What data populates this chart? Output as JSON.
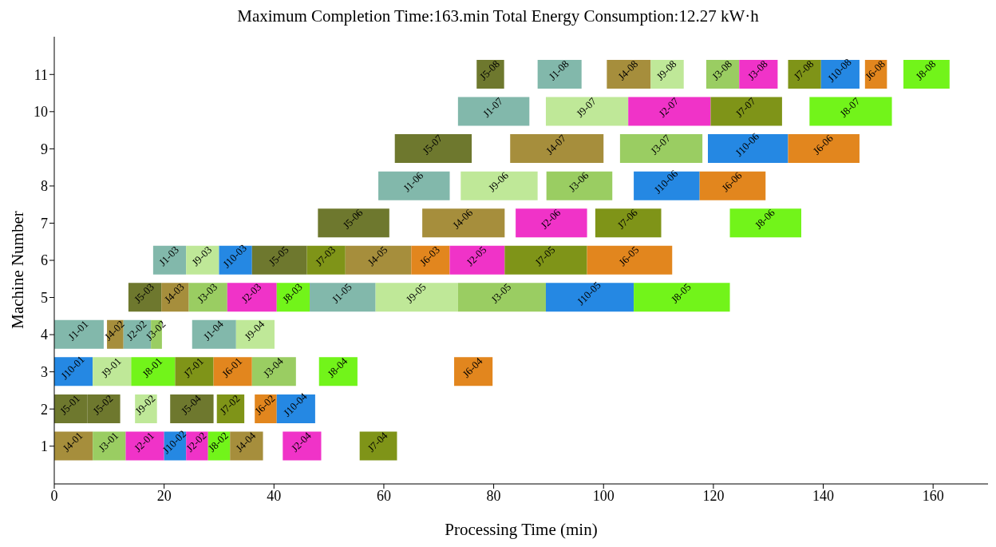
{
  "chart_data": {
    "type": "bar",
    "orientation": "horizontal",
    "title": "Maximum Completion Time:163.min  Total Energy Consumption:12.27 kW·h",
    "xlabel": "Processing Time (min)",
    "ylabel": "Machine Number",
    "categories": [
      "11",
      "10",
      "9",
      "8",
      "7",
      "6",
      "5",
      "4",
      "3",
      "2",
      "1"
    ],
    "xlim": [
      0,
      170
    ],
    "xticks": [
      0,
      20,
      40,
      60,
      80,
      100,
      120,
      140,
      160
    ],
    "grid": false,
    "legend": false,
    "series": [
      {
        "name": "J4-01",
        "color": "#a68e3c",
        "values": [
          null,
          null,
          null,
          null,
          null,
          null,
          null,
          null,
          null,
          null,
          7
        ],
        "base": [
          null,
          null,
          null,
          null,
          null,
          null,
          null,
          null,
          null,
          null,
          0
        ]
      },
      {
        "name": "J3-01",
        "color": "#9acd62",
        "values": [
          null,
          null,
          null,
          null,
          null,
          null,
          null,
          null,
          null,
          null,
          6
        ],
        "base": [
          null,
          null,
          null,
          null,
          null,
          null,
          null,
          null,
          null,
          null,
          7
        ]
      },
      {
        "name": "J2-01",
        "color": "#f033c8",
        "values": [
          null,
          null,
          null,
          null,
          null,
          null,
          null,
          null,
          null,
          null,
          7
        ],
        "base": [
          null,
          null,
          null,
          null,
          null,
          null,
          null,
          null,
          null,
          null,
          13
        ]
      },
      {
        "name": "J10-02",
        "color": "#2588e3",
        "values": [
          null,
          null,
          null,
          null,
          null,
          null,
          null,
          null,
          null,
          null,
          4
        ],
        "base": [
          null,
          null,
          null,
          null,
          null,
          null,
          null,
          null,
          null,
          null,
          20
        ]
      },
      {
        "name": "J2-02",
        "color": "#f033c8",
        "values": [
          null,
          null,
          null,
          null,
          null,
          null,
          null,
          null,
          null,
          null,
          4
        ],
        "base": [
          null,
          null,
          null,
          null,
          null,
          null,
          null,
          null,
          null,
          null,
          24
        ]
      },
      {
        "name": "J8-02",
        "color": "#72f41a",
        "values": [
          null,
          null,
          null,
          null,
          null,
          null,
          null,
          null,
          null,
          null,
          4
        ],
        "base": [
          null,
          null,
          null,
          null,
          null,
          null,
          null,
          null,
          null,
          null,
          28
        ]
      },
      {
        "name": "J4-04",
        "color": "#a68e3c",
        "values": [
          null,
          null,
          null,
          null,
          null,
          null,
          null,
          null,
          null,
          null,
          6
        ],
        "base": [
          null,
          null,
          null,
          null,
          null,
          null,
          null,
          null,
          null,
          null,
          32
        ]
      },
      {
        "name": "J2-04",
        "color": "#f033c8",
        "values": [
          null,
          null,
          null,
          null,
          null,
          null,
          null,
          null,
          null,
          null,
          7
        ],
        "base": [
          null,
          null,
          null,
          null,
          null,
          null,
          null,
          null,
          null,
          null,
          41.6
        ]
      },
      {
        "name": "J7-04",
        "color": "#7f9418",
        "values": [
          null,
          null,
          null,
          null,
          null,
          null,
          null,
          null,
          null,
          null,
          6.8
        ],
        "base": [
          null,
          null,
          null,
          null,
          null,
          null,
          null,
          null,
          null,
          null,
          55.6
        ]
      },
      {
        "name": "J5-01",
        "color": "#6e782e",
        "values": [
          null,
          null,
          null,
          null,
          null,
          null,
          null,
          null,
          null,
          6,
          null
        ],
        "base": [
          null,
          null,
          null,
          null,
          null,
          null,
          null,
          null,
          null,
          0,
          null
        ]
      },
      {
        "name": "J5-02",
        "color": "#6e782e",
        "values": [
          null,
          null,
          null,
          null,
          null,
          null,
          null,
          null,
          null,
          6,
          null
        ],
        "base": [
          null,
          null,
          null,
          null,
          null,
          null,
          null,
          null,
          null,
          6,
          null
        ]
      },
      {
        "name": "J9-02",
        "color": "#bfe898",
        "values": [
          null,
          null,
          null,
          null,
          null,
          null,
          null,
          null,
          null,
          4,
          null
        ],
        "base": [
          null,
          null,
          null,
          null,
          null,
          null,
          null,
          null,
          null,
          14.7,
          null
        ]
      },
      {
        "name": "J5-04",
        "color": "#6e782e",
        "values": [
          null,
          null,
          null,
          null,
          null,
          null,
          null,
          null,
          null,
          7.9,
          null
        ],
        "base": [
          null,
          null,
          null,
          null,
          null,
          null,
          null,
          null,
          null,
          21.1,
          null
        ]
      },
      {
        "name": "J7-02",
        "color": "#7f9418",
        "values": [
          null,
          null,
          null,
          null,
          null,
          null,
          null,
          null,
          null,
          5,
          null
        ],
        "base": [
          null,
          null,
          null,
          null,
          null,
          null,
          null,
          null,
          null,
          29.6,
          null
        ]
      },
      {
        "name": "J6-02",
        "color": "#e2861e",
        "values": [
          null,
          null,
          null,
          null,
          null,
          null,
          null,
          null,
          null,
          4,
          null
        ],
        "base": [
          null,
          null,
          null,
          null,
          null,
          null,
          null,
          null,
          null,
          36.5,
          null
        ]
      },
      {
        "name": "J10-04",
        "color": "#2588e3",
        "values": [
          null,
          null,
          null,
          null,
          null,
          null,
          null,
          null,
          null,
          7,
          null
        ],
        "base": [
          null,
          null,
          null,
          null,
          null,
          null,
          null,
          null,
          null,
          40.5,
          null
        ]
      },
      {
        "name": "J10-01",
        "color": "#2588e3",
        "values": [
          null,
          null,
          null,
          null,
          null,
          null,
          null,
          null,
          7,
          null,
          null
        ],
        "base": [
          null,
          null,
          null,
          null,
          null,
          null,
          null,
          null,
          0,
          null,
          null
        ]
      },
      {
        "name": "J9-01",
        "color": "#bfe898",
        "values": [
          null,
          null,
          null,
          null,
          null,
          null,
          null,
          null,
          7,
          null,
          null
        ],
        "base": [
          null,
          null,
          null,
          null,
          null,
          null,
          null,
          null,
          7,
          null,
          null
        ]
      },
      {
        "name": "J8-01",
        "color": "#72f41a",
        "values": [
          null,
          null,
          null,
          null,
          null,
          null,
          null,
          null,
          8,
          null,
          null
        ],
        "base": [
          null,
          null,
          null,
          null,
          null,
          null,
          null,
          null,
          14,
          null,
          null
        ]
      },
      {
        "name": "J7-01",
        "color": "#7f9418",
        "values": [
          null,
          null,
          null,
          null,
          null,
          null,
          null,
          null,
          7,
          null,
          null
        ],
        "base": [
          null,
          null,
          null,
          null,
          null,
          null,
          null,
          null,
          22,
          null,
          null
        ]
      },
      {
        "name": "J6-01",
        "color": "#e2861e",
        "values": [
          null,
          null,
          null,
          null,
          null,
          null,
          null,
          null,
          7,
          null,
          null
        ],
        "base": [
          null,
          null,
          null,
          null,
          null,
          null,
          null,
          null,
          29,
          null,
          null
        ]
      },
      {
        "name": "J3-04",
        "color": "#9acd62",
        "values": [
          null,
          null,
          null,
          null,
          null,
          null,
          null,
          null,
          8,
          null,
          null
        ],
        "base": [
          null,
          null,
          null,
          null,
          null,
          null,
          null,
          null,
          36,
          null,
          null
        ]
      },
      {
        "name": "J8-04",
        "color": "#72f41a",
        "values": [
          null,
          null,
          null,
          null,
          null,
          null,
          null,
          null,
          7,
          null,
          null
        ],
        "base": [
          null,
          null,
          null,
          null,
          null,
          null,
          null,
          null,
          48.2,
          null,
          null
        ]
      },
      {
        "name": "J6-04",
        "color": "#e2861e",
        "values": [
          null,
          null,
          null,
          null,
          null,
          null,
          null,
          null,
          7,
          null,
          null
        ],
        "base": [
          null,
          null,
          null,
          null,
          null,
          null,
          null,
          null,
          72.8,
          null,
          null
        ]
      },
      {
        "name": "J1-01",
        "color": "#82b8ab",
        "values": [
          null,
          null,
          null,
          null,
          null,
          null,
          null,
          9,
          null,
          null,
          null
        ],
        "base": [
          null,
          null,
          null,
          null,
          null,
          null,
          null,
          0,
          null,
          null,
          null
        ]
      },
      {
        "name": "J4-02",
        "color": "#a68e3c",
        "values": [
          null,
          null,
          null,
          null,
          null,
          null,
          null,
          3,
          null,
          null,
          null
        ],
        "base": [
          null,
          null,
          null,
          null,
          null,
          null,
          null,
          9.6,
          null,
          null,
          null
        ]
      },
      {
        "name": "J2-02",
        "color": "#82b8ab",
        "values": [
          null,
          null,
          null,
          null,
          null,
          null,
          null,
          5,
          null,
          null,
          null
        ],
        "base": [
          null,
          null,
          null,
          null,
          null,
          null,
          null,
          12.6,
          null,
          null,
          null
        ]
      },
      {
        "name": "J3-02",
        "color": "#9acd62",
        "values": [
          null,
          null,
          null,
          null,
          null,
          null,
          null,
          2,
          null,
          null,
          null
        ],
        "base": [
          null,
          null,
          null,
          null,
          null,
          null,
          null,
          17.6,
          null,
          null,
          null
        ]
      },
      {
        "name": "J1-04",
        "color": "#82b8ab",
        "values": [
          null,
          null,
          null,
          null,
          null,
          null,
          null,
          8,
          null,
          null,
          null
        ],
        "base": [
          null,
          null,
          null,
          null,
          null,
          null,
          null,
          25.1,
          null,
          null,
          null
        ]
      },
      {
        "name": "J9-04",
        "color": "#bfe898",
        "values": [
          null,
          null,
          null,
          null,
          null,
          null,
          null,
          7,
          null,
          null,
          null
        ],
        "base": [
          null,
          null,
          null,
          null,
          null,
          null,
          null,
          33.1,
          null,
          null,
          null
        ]
      },
      {
        "name": "J5-03",
        "color": "#6e782e",
        "values": [
          null,
          null,
          null,
          null,
          null,
          null,
          6,
          null,
          null,
          null,
          null
        ],
        "base": [
          null,
          null,
          null,
          null,
          null,
          null,
          13.5,
          null,
          null,
          null,
          null
        ]
      },
      {
        "name": "J4-03",
        "color": "#a68e3c",
        "values": [
          null,
          null,
          null,
          null,
          null,
          null,
          5,
          null,
          null,
          null,
          null
        ],
        "base": [
          null,
          null,
          null,
          null,
          null,
          null,
          19.5,
          null,
          null,
          null,
          null
        ]
      },
      {
        "name": "J3-03",
        "color": "#9acd62",
        "values": [
          null,
          null,
          null,
          null,
          null,
          null,
          7,
          null,
          null,
          null,
          null
        ],
        "base": [
          null,
          null,
          null,
          null,
          null,
          null,
          24.5,
          null,
          null,
          null,
          null
        ]
      },
      {
        "name": "J2-03",
        "color": "#f033c8",
        "values": [
          null,
          null,
          null,
          null,
          null,
          null,
          9,
          null,
          null,
          null,
          null
        ],
        "base": [
          null,
          null,
          null,
          null,
          null,
          null,
          31.5,
          null,
          null,
          null,
          null
        ]
      },
      {
        "name": "J8-03",
        "color": "#72f41a",
        "values": [
          null,
          null,
          null,
          null,
          null,
          null,
          6,
          null,
          null,
          null,
          null
        ],
        "base": [
          null,
          null,
          null,
          null,
          null,
          null,
          40.5,
          null,
          null,
          null,
          null
        ]
      },
      {
        "name": "J1-05",
        "color": "#82b8ab",
        "values": [
          null,
          null,
          null,
          null,
          null,
          null,
          12,
          null,
          null,
          null,
          null
        ],
        "base": [
          null,
          null,
          null,
          null,
          null,
          null,
          46.5,
          null,
          null,
          null,
          null
        ]
      },
      {
        "name": "J9-05",
        "color": "#bfe898",
        "values": [
          null,
          null,
          null,
          null,
          null,
          null,
          15,
          null,
          null,
          null,
          null
        ],
        "base": [
          null,
          null,
          null,
          null,
          null,
          null,
          58.5,
          null,
          null,
          null,
          null
        ]
      },
      {
        "name": "J3-05",
        "color": "#9acd62",
        "values": [
          null,
          null,
          null,
          null,
          null,
          null,
          16,
          null,
          null,
          null,
          null
        ],
        "base": [
          null,
          null,
          null,
          null,
          null,
          null,
          73.5,
          null,
          null,
          null,
          null
        ]
      },
      {
        "name": "J10-05",
        "color": "#2588e3",
        "values": [
          null,
          null,
          null,
          null,
          null,
          null,
          16,
          null,
          null,
          null,
          null
        ],
        "base": [
          null,
          null,
          null,
          null,
          null,
          null,
          89.5,
          null,
          null,
          null,
          null
        ]
      },
      {
        "name": "J8-05",
        "color": "#72f41a",
        "values": [
          null,
          null,
          null,
          null,
          null,
          null,
          17.5,
          null,
          null,
          null,
          null
        ],
        "base": [
          null,
          null,
          null,
          null,
          null,
          null,
          105.5,
          null,
          null,
          null,
          null
        ]
      },
      {
        "name": "J1-03",
        "color": "#82b8ab",
        "values": [
          null,
          null,
          null,
          null,
          null,
          6,
          null,
          null,
          null,
          null,
          null
        ],
        "base": [
          null,
          null,
          null,
          null,
          null,
          18,
          null,
          null,
          null,
          null,
          null
        ]
      },
      {
        "name": "J9-03",
        "color": "#bfe898",
        "values": [
          null,
          null,
          null,
          null,
          null,
          6,
          null,
          null,
          null,
          null,
          null
        ],
        "base": [
          null,
          null,
          null,
          null,
          null,
          24,
          null,
          null,
          null,
          null,
          null
        ]
      },
      {
        "name": "J10-03",
        "color": "#2588e3",
        "values": [
          null,
          null,
          null,
          null,
          null,
          6,
          null,
          null,
          null,
          null,
          null
        ],
        "base": [
          null,
          null,
          null,
          null,
          null,
          30,
          null,
          null,
          null,
          null,
          null
        ]
      },
      {
        "name": "J5-05",
        "color": "#6e782e",
        "values": [
          null,
          null,
          null,
          null,
          null,
          10,
          null,
          null,
          null,
          null,
          null
        ],
        "base": [
          null,
          null,
          null,
          null,
          null,
          36,
          null,
          null,
          null,
          null,
          null
        ]
      },
      {
        "name": "J7-03",
        "color": "#7f9418",
        "values": [
          null,
          null,
          null,
          null,
          null,
          7,
          null,
          null,
          null,
          null,
          null
        ],
        "base": [
          null,
          null,
          null,
          null,
          null,
          46,
          null,
          null,
          null,
          null,
          null
        ]
      },
      {
        "name": "J4-05",
        "color": "#a68e3c",
        "values": [
          null,
          null,
          null,
          null,
          null,
          12,
          null,
          null,
          null,
          null,
          null
        ],
        "base": [
          null,
          null,
          null,
          null,
          null,
          53,
          null,
          null,
          null,
          null,
          null
        ]
      },
      {
        "name": "J6-03",
        "color": "#e2861e",
        "values": [
          null,
          null,
          null,
          null,
          null,
          7,
          null,
          null,
          null,
          null,
          null
        ],
        "base": [
          null,
          null,
          null,
          null,
          null,
          65,
          null,
          null,
          null,
          null,
          null
        ]
      },
      {
        "name": "J2-05",
        "color": "#f033c8",
        "values": [
          null,
          null,
          null,
          null,
          null,
          10,
          null,
          null,
          null,
          null,
          null
        ],
        "base": [
          null,
          null,
          null,
          null,
          null,
          72,
          null,
          null,
          null,
          null,
          null
        ]
      },
      {
        "name": "J7-05",
        "color": "#7f9418",
        "values": [
          null,
          null,
          null,
          null,
          null,
          15,
          null,
          null,
          null,
          null,
          null
        ],
        "base": [
          null,
          null,
          null,
          null,
          null,
          82,
          null,
          null,
          null,
          null,
          null
        ]
      },
      {
        "name": "J6-05",
        "color": "#e2861e",
        "values": [
          null,
          null,
          null,
          null,
          null,
          15.5,
          null,
          null,
          null,
          null,
          null
        ],
        "base": [
          null,
          null,
          null,
          null,
          null,
          97,
          null,
          null,
          null,
          null,
          null
        ]
      },
      {
        "name": "J5-06",
        "color": "#6e782e",
        "values": [
          null,
          null,
          null,
          null,
          13,
          null,
          null,
          null,
          null,
          null,
          null
        ],
        "base": [
          null,
          null,
          null,
          null,
          48,
          null,
          null,
          null,
          null,
          null,
          null
        ]
      },
      {
        "name": "J4-06",
        "color": "#a68e3c",
        "values": [
          null,
          null,
          null,
          null,
          15,
          null,
          null,
          null,
          null,
          null,
          null
        ],
        "base": [
          null,
          null,
          null,
          null,
          67,
          null,
          null,
          null,
          null,
          null,
          null
        ]
      },
      {
        "name": "J2-06",
        "color": "#f033c8",
        "values": [
          null,
          null,
          null,
          null,
          13,
          null,
          null,
          null,
          null,
          null,
          null
        ],
        "base": [
          null,
          null,
          null,
          null,
          84,
          null,
          null,
          null,
          null,
          null,
          null
        ]
      },
      {
        "name": "J7-06",
        "color": "#7f9418",
        "values": [
          null,
          null,
          null,
          null,
          12,
          null,
          null,
          null,
          null,
          null,
          null
        ],
        "base": [
          null,
          null,
          null,
          null,
          98.5,
          null,
          null,
          null,
          null,
          null,
          null
        ]
      },
      {
        "name": "J8-06",
        "color": "#72f41a",
        "values": [
          null,
          null,
          null,
          null,
          13,
          null,
          null,
          null,
          null,
          null,
          null
        ],
        "base": [
          null,
          null,
          null,
          null,
          123,
          null,
          null,
          null,
          null,
          null,
          null
        ]
      },
      {
        "name": "J1-06",
        "color": "#82b8ab",
        "values": [
          null,
          null,
          null,
          13,
          null,
          null,
          null,
          null,
          null,
          null,
          null
        ],
        "base": [
          null,
          null,
          null,
          59,
          null,
          null,
          null,
          null,
          null,
          null,
          null
        ]
      },
      {
        "name": "J9-06",
        "color": "#bfe898",
        "values": [
          null,
          null,
          null,
          14,
          null,
          null,
          null,
          null,
          null,
          null,
          null
        ],
        "base": [
          null,
          null,
          null,
          74,
          null,
          null,
          null,
          null,
          null,
          null,
          null
        ]
      },
      {
        "name": "J3-06",
        "color": "#9acd62",
        "values": [
          null,
          null,
          null,
          12,
          null,
          null,
          null,
          null,
          null,
          null,
          null
        ],
        "base": [
          null,
          null,
          null,
          89.6,
          null,
          null,
          null,
          null,
          null,
          null,
          null
        ]
      },
      {
        "name": "J10-06",
        "color": "#2588e3",
        "values": [
          null,
          null,
          null,
          12,
          null,
          null,
          null,
          null,
          null,
          null,
          null
        ],
        "base": [
          null,
          null,
          null,
          105.5,
          null,
          null,
          null,
          null,
          null,
          null,
          null
        ]
      },
      {
        "name": "J6-06",
        "color": "#e2861e",
        "values": [
          null,
          null,
          null,
          12,
          null,
          null,
          null,
          null,
          null,
          null,
          null
        ],
        "base": [
          null,
          null,
          null,
          117.5,
          null,
          null,
          null,
          null,
          null,
          null,
          null
        ]
      },
      {
        "name": "J5-07",
        "color": "#6e782e",
        "values": [
          null,
          null,
          14,
          null,
          null,
          null,
          null,
          null,
          null,
          null,
          null
        ],
        "base": [
          null,
          null,
          62,
          null,
          null,
          null,
          null,
          null,
          null,
          null,
          null
        ]
      },
      {
        "name": "J4-07",
        "color": "#a68e3c",
        "values": [
          null,
          null,
          17,
          null,
          null,
          null,
          null,
          null,
          null,
          null,
          null
        ],
        "base": [
          null,
          null,
          83,
          null,
          null,
          null,
          null,
          null,
          null,
          null,
          null
        ]
      },
      {
        "name": "J3-07",
        "color": "#9acd62",
        "values": [
          null,
          null,
          15,
          null,
          null,
          null,
          null,
          null,
          null,
          null,
          null
        ],
        "base": [
          null,
          null,
          103,
          null,
          null,
          null,
          null,
          null,
          null,
          null,
          null
        ]
      },
      {
        "name": "J10-06",
        "color": "#2588e3",
        "values": [
          null,
          null,
          14.6,
          null,
          null,
          null,
          null,
          null,
          null,
          null,
          null
        ],
        "base": [
          null,
          null,
          119,
          null,
          null,
          null,
          null,
          null,
          null,
          null,
          null
        ]
      },
      {
        "name": "J6-06",
        "color": "#e2861e",
        "values": [
          null,
          null,
          13,
          null,
          null,
          null,
          null,
          null,
          null,
          null,
          null
        ],
        "base": [
          null,
          null,
          133.6,
          null,
          null,
          null,
          null,
          null,
          null,
          null,
          null
        ]
      },
      {
        "name": "J1-07",
        "color": "#82b8ab",
        "values": [
          null,
          13,
          null,
          null,
          null,
          null,
          null,
          null,
          null,
          null,
          null
        ],
        "base": [
          null,
          73.5,
          null,
          null,
          null,
          null,
          null,
          null,
          null,
          null,
          null
        ]
      },
      {
        "name": "J9-07",
        "color": "#bfe898",
        "values": [
          null,
          15,
          null,
          null,
          null,
          null,
          null,
          null,
          null,
          null,
          null
        ],
        "base": [
          null,
          89.5,
          null,
          null,
          null,
          null,
          null,
          null,
          null,
          null,
          null
        ]
      },
      {
        "name": "J2-07",
        "color": "#f033c8",
        "values": [
          null,
          15,
          null,
          null,
          null,
          null,
          null,
          null,
          null,
          null,
          null
        ],
        "base": [
          null,
          104.5,
          null,
          null,
          null,
          null,
          null,
          null,
          null,
          null,
          null
        ]
      },
      {
        "name": "J7-07",
        "color": "#7f9418",
        "values": [
          null,
          13,
          null,
          null,
          null,
          null,
          null,
          null,
          null,
          null,
          null
        ],
        "base": [
          null,
          119.5,
          null,
          null,
          null,
          null,
          null,
          null,
          null,
          null,
          null
        ]
      },
      {
        "name": "J8-07",
        "color": "#72f41a",
        "values": [
          null,
          15,
          null,
          null,
          null,
          null,
          null,
          null,
          null,
          null,
          null
        ],
        "base": [
          null,
          137.5,
          null,
          null,
          null,
          null,
          null,
          null,
          null,
          null,
          null
        ]
      },
      {
        "name": "J5-08",
        "color": "#6e782e",
        "values": [
          5,
          null,
          null,
          null,
          null,
          null,
          null,
          null,
          null,
          null,
          null
        ],
        "base": [
          76.9,
          null,
          null,
          null,
          null,
          null,
          null,
          null,
          null,
          null,
          null
        ]
      },
      {
        "name": "J1-08",
        "color": "#82b8ab",
        "values": [
          8,
          null,
          null,
          null,
          null,
          null,
          null,
          null,
          null,
          null,
          null
        ],
        "base": [
          88,
          null,
          null,
          null,
          null,
          null,
          null,
          null,
          null,
          null,
          null
        ]
      },
      {
        "name": "J4-08",
        "color": "#a68e3c",
        "values": [
          8,
          null,
          null,
          null,
          null,
          null,
          null,
          null,
          null,
          null,
          null
        ],
        "base": [
          100.6,
          null,
          null,
          null,
          null,
          null,
          null,
          null,
          null,
          null,
          null
        ]
      },
      {
        "name": "J9-08",
        "color": "#bfe898",
        "values": [
          6,
          null,
          null,
          null,
          null,
          null,
          null,
          null,
          null,
          null,
          null
        ],
        "base": [
          108.6,
          null,
          null,
          null,
          null,
          null,
          null,
          null,
          null,
          null,
          null
        ]
      },
      {
        "name": "J3-08",
        "color": "#9acd62",
        "values": [
          6,
          null,
          null,
          null,
          null,
          null,
          null,
          null,
          null,
          null,
          null
        ],
        "base": [
          118.7,
          null,
          null,
          null,
          null,
          null,
          null,
          null,
          null,
          null,
          null
        ]
      },
      {
        "name": "J3-08",
        "color": "#f033c8",
        "values": [
          7,
          null,
          null,
          null,
          null,
          null,
          null,
          null,
          null,
          null,
          null
        ],
        "base": [
          124.7,
          null,
          null,
          null,
          null,
          null,
          null,
          null,
          null,
          null,
          null
        ]
      },
      {
        "name": "J7-08",
        "color": "#7f9418",
        "values": [
          6,
          null,
          null,
          null,
          null,
          null,
          null,
          null,
          null,
          null,
          null
        ],
        "base": [
          133.6,
          null,
          null,
          null,
          null,
          null,
          null,
          null,
          null,
          null,
          null
        ]
      },
      {
        "name": "J10-08",
        "color": "#2588e3",
        "values": [
          7,
          null,
          null,
          null,
          null,
          null,
          null,
          null,
          null,
          null,
          null
        ],
        "base": [
          139.6,
          null,
          null,
          null,
          null,
          null,
          null,
          null,
          null,
          null,
          null
        ]
      },
      {
        "name": "J6-08",
        "color": "#e2861e",
        "values": [
          4,
          null,
          null,
          null,
          null,
          null,
          null,
          null,
          null,
          null,
          null
        ],
        "base": [
          147.6,
          null,
          null,
          null,
          null,
          null,
          null,
          null,
          null,
          null,
          null
        ]
      },
      {
        "name": "J8-08",
        "color": "#72f41a",
        "values": [
          8.4,
          null,
          null,
          null,
          null,
          null,
          null,
          null,
          null,
          null,
          null
        ],
        "base": [
          154.6,
          null,
          null,
          null,
          null,
          null,
          null,
          null,
          null,
          null,
          null
        ]
      }
    ]
  }
}
